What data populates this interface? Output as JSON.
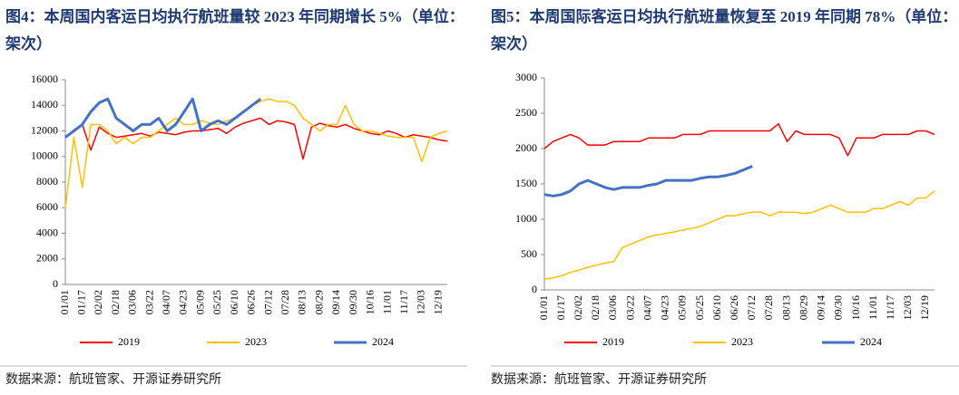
{
  "chart_data": [
    {
      "type": "line",
      "title": "图4：本周国内客运日均执行航班量较 2023 年同期增长 5%（单位：架次）",
      "source": "数据来源：航班管家、开源证券研究所",
      "categories": [
        "01/01",
        null,
        "01/17",
        null,
        "02/02",
        null,
        "02/18",
        null,
        "03/06",
        null,
        "03/22",
        null,
        "04/07",
        null,
        "04/23",
        null,
        "05/09",
        null,
        "05/25",
        null,
        "06/10",
        null,
        "06/26",
        null,
        "07/12",
        null,
        "07/28",
        null,
        "08/13",
        null,
        "08/29",
        null,
        "09/14",
        null,
        "09/30",
        null,
        "10/16",
        null,
        "11/01",
        null,
        "11/17",
        null,
        "12/03",
        null,
        "12/19",
        null
      ],
      "ylim": [
        0,
        16000
      ],
      "yticks": [
        0,
        2000,
        4000,
        6000,
        8000,
        10000,
        12000,
        14000,
        16000
      ],
      "series": [
        {
          "name": "2019",
          "color": "#ff0000",
          "values": [
            11500,
            12000,
            12500,
            10500,
            12300,
            11800,
            11500,
            11600,
            11700,
            11800,
            11600,
            11900,
            11800,
            11700,
            11900,
            12000,
            12000,
            12100,
            12200,
            11800,
            12300,
            12600,
            12800,
            13000,
            12500,
            12800,
            12700,
            12500,
            9800,
            12300,
            12600,
            12400,
            12300,
            12500,
            12200,
            12000,
            11800,
            11700,
            12000,
            11800,
            11500,
            11700,
            11600,
            11500,
            11300,
            11200
          ]
        },
        {
          "name": "2023",
          "color": "#ffc000",
          "values": [
            6000,
            11500,
            7600,
            12500,
            12500,
            12000,
            11000,
            11500,
            11000,
            11500,
            11500,
            12000,
            12500,
            13000,
            12500,
            12500,
            12800,
            12600,
            12500,
            12800,
            13000,
            13500,
            14000,
            14300,
            14500,
            14300,
            14300,
            14000,
            13000,
            12500,
            12000,
            12500,
            12500,
            14000,
            12500,
            12000,
            12000,
            11800,
            11600,
            11500,
            11500,
            11500,
            9600,
            11500,
            11800,
            12000
          ]
        },
        {
          "name": "2024",
          "color": "#4472c4",
          "values": [
            11500,
            12000,
            12500,
            13500,
            14200,
            14500,
            13000,
            12500,
            12000,
            12500,
            12500,
            13000,
            12000,
            12500,
            13500,
            14500,
            12000,
            12500,
            12800,
            12500,
            13000,
            13500,
            14000,
            14500,
            null,
            null,
            null,
            null,
            null,
            null,
            null,
            null,
            null,
            null,
            null,
            null,
            null,
            null,
            null,
            null,
            null,
            null,
            null,
            null,
            null,
            null
          ]
        }
      ]
    },
    {
      "type": "line",
      "title": "图5：本周国际客运日均执行航班量恢复至 2019 年同期 78%（单位：架次）",
      "source": "数据来源：航班管家、开源证券研究所",
      "categories": [
        "01/01",
        null,
        "01/17",
        null,
        "02/02",
        null,
        "02/18",
        null,
        "03/06",
        null,
        "03/22",
        null,
        "04/07",
        null,
        "04/23",
        null,
        "05/09",
        null,
        "05/25",
        null,
        "06/10",
        null,
        "06/26",
        null,
        "07/12",
        null,
        "07/28",
        null,
        "08/13",
        null,
        "08/29",
        null,
        "09/14",
        null,
        "09/30",
        null,
        "10/16",
        null,
        "11/01",
        null,
        "11/17",
        null,
        "12/03",
        null,
        "12/19",
        null
      ],
      "ylim": [
        0,
        3000
      ],
      "yticks": [
        0,
        500,
        1000,
        1500,
        2000,
        2500,
        3000
      ],
      "series": [
        {
          "name": "2019",
          "color": "#ff0000",
          "values": [
            2000,
            2100,
            2150,
            2200,
            2150,
            2050,
            2050,
            2050,
            2100,
            2100,
            2100,
            2100,
            2150,
            2150,
            2150,
            2150,
            2200,
            2200,
            2200,
            2250,
            2250,
            2250,
            2250,
            2250,
            2250,
            2250,
            2250,
            2350,
            2100,
            2250,
            2200,
            2200,
            2200,
            2200,
            2150,
            1900,
            2150,
            2150,
            2150,
            2200,
            2200,
            2200,
            2200,
            2250,
            2250,
            2200
          ]
        },
        {
          "name": "2023",
          "color": "#ffc000",
          "values": [
            150,
            170,
            200,
            250,
            280,
            320,
            350,
            380,
            400,
            600,
            650,
            700,
            750,
            780,
            800,
            820,
            850,
            870,
            900,
            950,
            1000,
            1050,
            1050,
            1080,
            1100,
            1100,
            1050,
            1100,
            1100,
            1100,
            1080,
            1100,
            1150,
            1200,
            1150,
            1100,
            1100,
            1100,
            1150,
            1150,
            1200,
            1250,
            1200,
            1300,
            1300,
            1400
          ]
        },
        {
          "name": "2024",
          "color": "#4472c4",
          "values": [
            1350,
            1330,
            1350,
            1400,
            1500,
            1550,
            1500,
            1450,
            1420,
            1450,
            1450,
            1450,
            1480,
            1500,
            1550,
            1550,
            1550,
            1550,
            1580,
            1600,
            1600,
            1620,
            1650,
            1700,
            1750,
            null,
            null,
            null,
            null,
            null,
            null,
            null,
            null,
            null,
            null,
            null,
            null,
            null,
            null,
            null,
            null,
            null,
            null,
            null,
            null,
            null
          ]
        }
      ]
    }
  ]
}
